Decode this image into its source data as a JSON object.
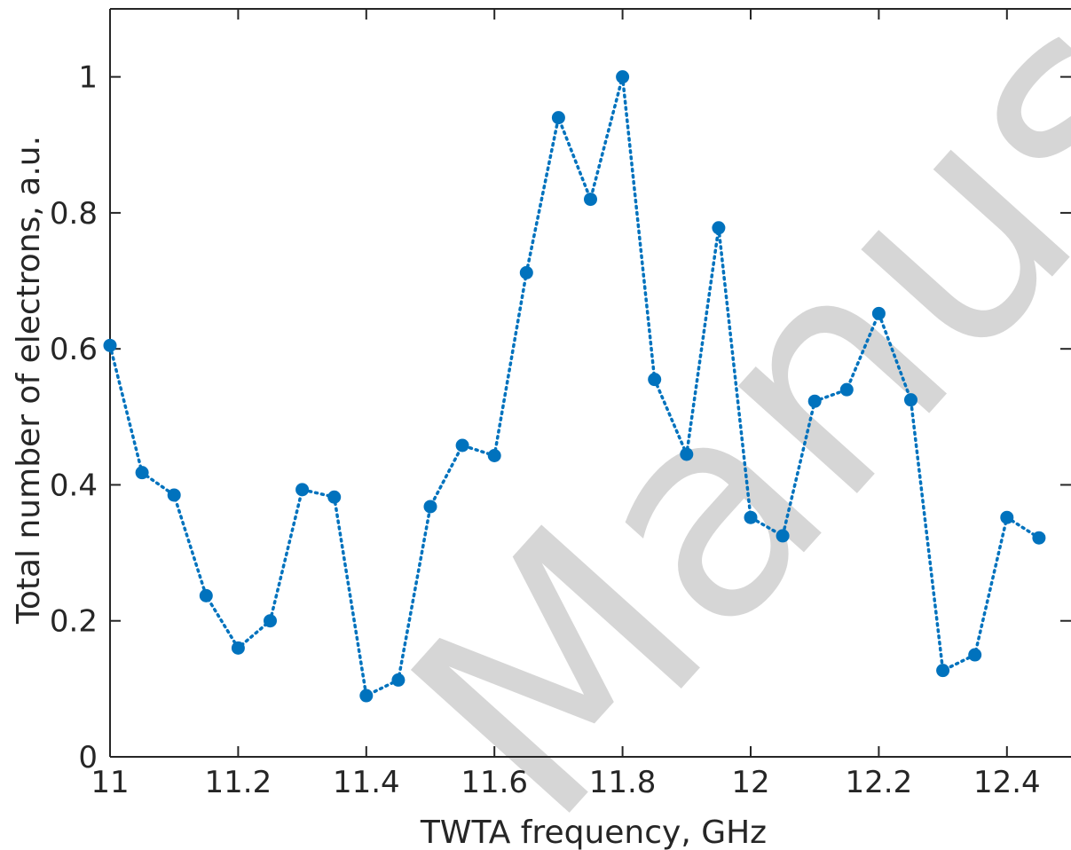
{
  "chart_data": {
    "type": "line",
    "xlabel": "TWTA frequency, GHz",
    "ylabel": "Total number of electrons, a.u.",
    "xlim": [
      11,
      12.5
    ],
    "ylim": [
      0,
      1.1
    ],
    "xticks": [
      11,
      11.2,
      11.4,
      11.6,
      11.8,
      12,
      12.2,
      12.4
    ],
    "xtick_labels": [
      "11",
      "11.2",
      "11.4",
      "11.6",
      "11.8",
      "12",
      "12.2",
      "12.4"
    ],
    "yticks": [
      0,
      0.2,
      0.4,
      0.6,
      0.8,
      1
    ],
    "ytick_labels": [
      "0",
      "0.2",
      "0.4",
      "0.6",
      "0.8",
      "1"
    ],
    "grid": false,
    "line_style": "dotted",
    "marker": "circle",
    "color": "#0072BD",
    "series": [
      {
        "x": [
          11.0,
          11.05,
          11.1,
          11.15,
          11.2,
          11.25,
          11.3,
          11.35,
          11.4,
          11.45,
          11.5,
          11.55,
          11.6,
          11.65,
          11.7,
          11.75,
          11.8,
          11.85,
          11.9,
          11.95,
          12.0,
          12.05,
          12.1,
          12.15,
          12.2,
          12.25,
          12.3,
          12.35,
          12.4,
          12.45
        ],
        "y": [
          0.605,
          0.418,
          0.385,
          0.237,
          0.16,
          0.2,
          0.393,
          0.382,
          0.09,
          0.113,
          0.368,
          0.458,
          0.443,
          0.712,
          0.94,
          0.82,
          1.0,
          0.555,
          0.445,
          0.778,
          0.352,
          0.325,
          0.523,
          0.54,
          0.652,
          0.525,
          0.127,
          0.15,
          0.352,
          0.322
        ]
      }
    ]
  },
  "watermark": "Accepted Manuscript"
}
